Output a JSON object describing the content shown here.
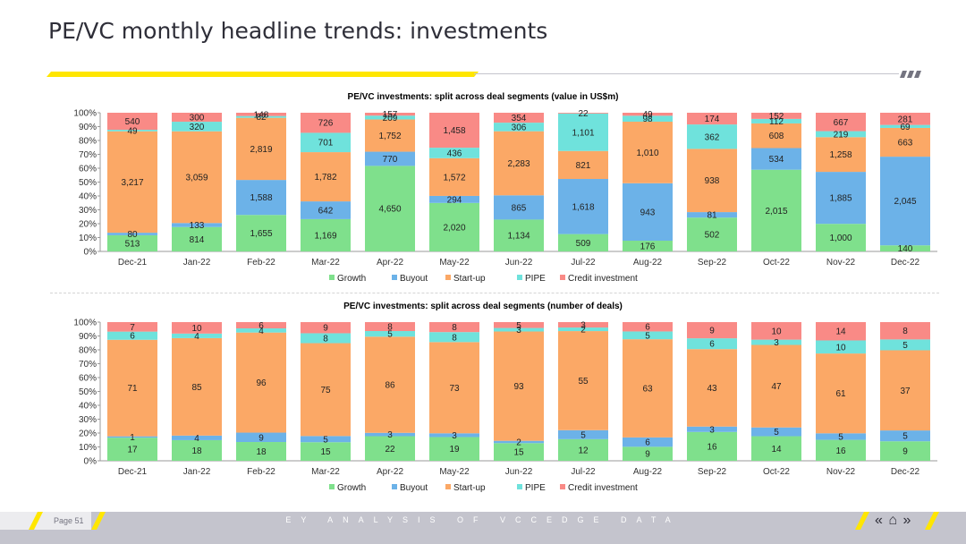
{
  "page": {
    "title": "PE/VC monthly headline trends: investments",
    "page_number": "Page 51",
    "footer_text": "EY ANALYSIS OF VCCEDGE DATA",
    "nav": {
      "prev": "«",
      "home": "⌂",
      "next": "»"
    }
  },
  "colors": {
    "Growth": "#7fe08c",
    "Buyout": "#6cb2e8",
    "Start-up": "#fba866",
    "PIPE": "#6fe2dc",
    "Credit investment": "#f98a86",
    "accent": "#ffe600"
  },
  "chart_data": [
    {
      "type": "bar",
      "stacked": "percent",
      "title": "PE/VC investments: split across deal segments (value in US$m)",
      "categories": [
        "Dec-21",
        "Jan-22",
        "Feb-22",
        "Mar-22",
        "Apr-22",
        "May-22",
        "Jun-22",
        "Jul-22",
        "Aug-22",
        "Sep-22",
        "Oct-22",
        "Nov-22",
        "Dec-22"
      ],
      "y_ticks": [
        "0%",
        "10%",
        "20%",
        "30%",
        "40%",
        "50%",
        "60%",
        "70%",
        "80%",
        "90%",
        "100%"
      ],
      "legend": "bottom",
      "series": [
        {
          "name": "Growth",
          "values": [
            513,
            814,
            1655,
            1169,
            4650,
            2020,
            1134,
            509,
            176,
            502,
            2015,
            1000,
            140
          ]
        },
        {
          "name": "Buyout",
          "values": [
            80,
            133,
            1588,
            642,
            770,
            294,
            865,
            1618,
            943,
            81,
            534,
            1885,
            2045
          ]
        },
        {
          "name": "Start-up",
          "values": [
            3217,
            3059,
            2819,
            1782,
            1752,
            1572,
            2283,
            821,
            1010,
            938,
            608,
            1258,
            663
          ]
        },
        {
          "name": "PIPE",
          "values": [
            49,
            320,
            82,
            701,
            209,
            436,
            306,
            1101,
            98,
            362,
            112,
            219,
            69
          ]
        },
        {
          "name": "Credit investment",
          "values": [
            540,
            300,
            148,
            726,
            157,
            1458,
            354,
            22,
            49,
            174,
            152,
            667,
            281
          ]
        }
      ],
      "labels": {
        "Growth": [
          "513",
          "814",
          "1,655",
          "1,169",
          "4,650",
          "2,020",
          "1,134",
          "509",
          "176",
          "502",
          "2,015",
          "1,000",
          "140"
        ],
        "Buyout": [
          "80",
          "133",
          "1,588",
          "642",
          "770",
          "294",
          "865",
          "1,618",
          "943",
          "81",
          "534",
          "1,885",
          "2,045"
        ],
        "Start-up": [
          "3,217",
          "3,059",
          "2,819",
          "1,782",
          "1,752",
          "1,572",
          "2,283",
          "821",
          "1,010",
          "938",
          "608",
          "1,258",
          "663"
        ],
        "PIPE": [
          "49",
          "320",
          "82",
          "701",
          "209",
          "436",
          "306",
          "1,101",
          "98",
          "362",
          "112",
          "219",
          "69"
        ],
        "Credit investment": [
          "540",
          "300",
          "148",
          "726",
          "157",
          "1,458",
          "354",
          "22",
          "49",
          "174",
          "152",
          "667",
          "281"
        ]
      }
    },
    {
      "type": "bar",
      "stacked": "percent",
      "title": "PE/VC investments: split across deal segments (number of deals)",
      "categories": [
        "Dec-21",
        "Jan-22",
        "Feb-22",
        "Mar-22",
        "Apr-22",
        "May-22",
        "Jun-22",
        "Jul-22",
        "Aug-22",
        "Sep-22",
        "Oct-22",
        "Nov-22",
        "Dec-22"
      ],
      "y_ticks": [
        "0%",
        "10%",
        "20%",
        "30%",
        "40%",
        "50%",
        "60%",
        "70%",
        "80%",
        "90%",
        "100%"
      ],
      "legend": "bottom",
      "series": [
        {
          "name": "Growth",
          "values": [
            17,
            18,
            18,
            15,
            22,
            19,
            15,
            12,
            9,
            16,
            14,
            16,
            9
          ]
        },
        {
          "name": "Buyout",
          "values": [
            1,
            4,
            9,
            5,
            3,
            3,
            2,
            5,
            6,
            3,
            5,
            5,
            5
          ]
        },
        {
          "name": "Start-up",
          "values": [
            71,
            85,
            96,
            75,
            86,
            73,
            93,
            55,
            63,
            43,
            47,
            61,
            37
          ]
        },
        {
          "name": "PIPE",
          "values": [
            6,
            4,
            4,
            8,
            5,
            8,
            3,
            2,
            5,
            6,
            3,
            10,
            5
          ]
        },
        {
          "name": "Credit investment",
          "values": [
            7,
            10,
            6,
            9,
            8,
            8,
            5,
            3,
            6,
            9,
            10,
            14,
            8
          ]
        }
      ],
      "labels": {
        "Growth": [
          "17",
          "18",
          "18",
          "15",
          "22",
          "19",
          "15",
          "12",
          "9",
          "16",
          "14",
          "16",
          "9"
        ],
        "Buyout": [
          "1",
          "4",
          "9",
          "5",
          "3",
          "3",
          "2",
          "5",
          "6",
          "3",
          "5",
          "5",
          "5"
        ],
        "Start-up": [
          "71",
          "85",
          "96",
          "75",
          "86",
          "73",
          "93",
          "55",
          "63",
          "43",
          "47",
          "61",
          "37"
        ],
        "PIPE": [
          "6",
          "4",
          "4",
          "8",
          "5",
          "8",
          "3",
          "2",
          "5",
          "6",
          "3",
          "10",
          "5"
        ],
        "Credit investment": [
          "7",
          "10",
          "6",
          "9",
          "8",
          "8",
          "5",
          "3",
          "6",
          "9",
          "10",
          "14",
          "8"
        ]
      }
    }
  ]
}
